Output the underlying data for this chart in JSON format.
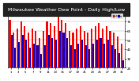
{
  "title": "Milwaukee Weather Dew Point - Daily High/Low",
  "title_fontsize": 4.5,
  "title_bg": "#222222",
  "title_color": "#ffffff",
  "bar_width": 0.45,
  "high_color": "#ff0000",
  "low_color": "#0000cc",
  "background_color": "#ffffff",
  "plot_bg": "#ffffff",
  "grid_color": "#aaaaaa",
  "ylim": [
    20,
    80
  ],
  "yticks": [
    20,
    30,
    40,
    50,
    60,
    70,
    80
  ],
  "n_days": 31,
  "highs": [
    72,
    58,
    62,
    70,
    65,
    58,
    62,
    60,
    52,
    60,
    70,
    68,
    65,
    75,
    72,
    68,
    60,
    58,
    62,
    65,
    60,
    58,
    62,
    65,
    68,
    62,
    65,
    60,
    58,
    54,
    46
  ],
  "lows": [
    55,
    42,
    48,
    55,
    50,
    42,
    46,
    44,
    35,
    44,
    55,
    52,
    50,
    60,
    58,
    52,
    44,
    40,
    46,
    50,
    44,
    40,
    46,
    50,
    52,
    46,
    50,
    44,
    40,
    36,
    28
  ]
}
